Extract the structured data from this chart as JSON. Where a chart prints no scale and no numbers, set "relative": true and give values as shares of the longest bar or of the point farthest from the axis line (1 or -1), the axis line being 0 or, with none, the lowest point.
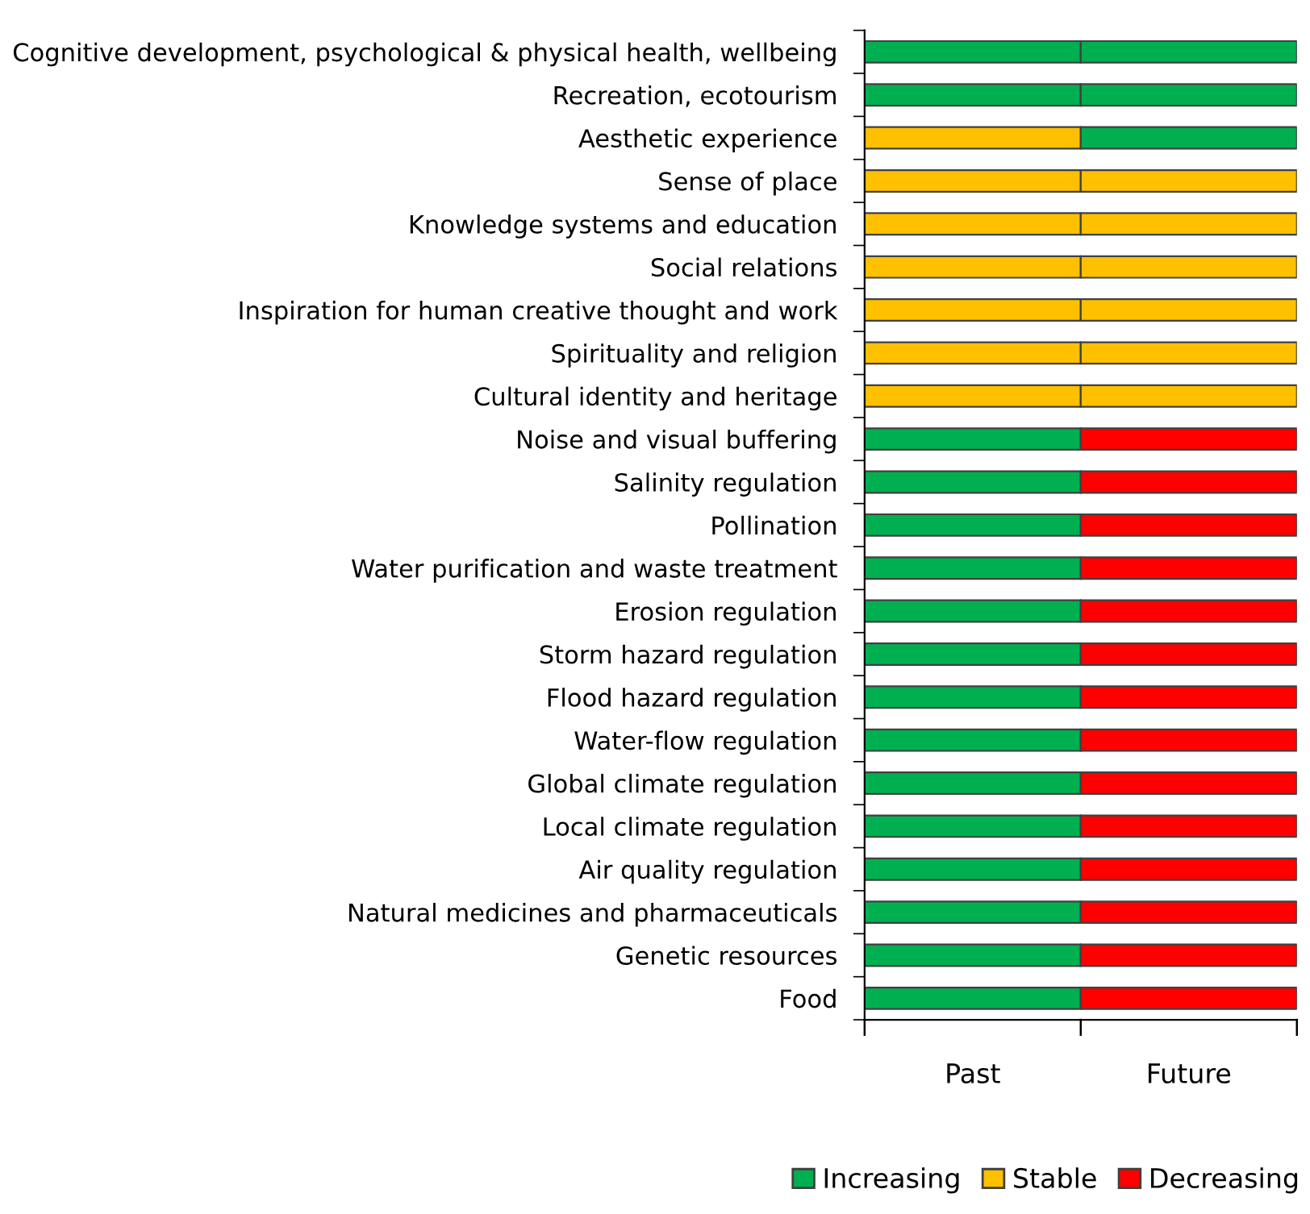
{
  "chart_data": {
    "type": "bar",
    "orientation": "horizontal",
    "stacked": true,
    "relative": true,
    "categories": [
      "Cognitive development, psychological & physical health, wellbeing",
      "Recreation, ecotourism",
      "Aesthetic experience",
      "Sense of place",
      "Knowledge systems and education",
      "Social relations",
      "Inspiration for human creative thought and work",
      "Spirituality and religion",
      "Cultural identity and heritage",
      "Noise and visual buffering",
      "Salinity regulation",
      "Pollination",
      "Water purification and waste treatment",
      "Erosion regulation",
      "Storm hazard regulation",
      "Flood hazard regulation",
      "Water-flow regulation",
      "Global climate regulation",
      "Local climate regulation",
      "Air quality regulation",
      "Natural medicines and pharmaceuticals",
      "Genetic resources",
      "Food"
    ],
    "series": [
      {
        "name": "Past",
        "values": [
          0.5,
          0.5,
          0.5,
          0.5,
          0.5,
          0.5,
          0.5,
          0.5,
          0.5,
          0.5,
          0.5,
          0.5,
          0.5,
          0.5,
          0.5,
          0.5,
          0.5,
          0.5,
          0.5,
          0.5,
          0.5,
          0.5,
          0.5
        ],
        "colors": [
          "#00b050",
          "#00b050",
          "#ffc000",
          "#ffc000",
          "#ffc000",
          "#ffc000",
          "#ffc000",
          "#ffc000",
          "#ffc000",
          "#00b050",
          "#00b050",
          "#00b050",
          "#00b050",
          "#00b050",
          "#00b050",
          "#00b050",
          "#00b050",
          "#00b050",
          "#00b050",
          "#00b050",
          "#00b050",
          "#00b050",
          "#00b050"
        ]
      },
      {
        "name": "Future",
        "values": [
          0.5,
          0.5,
          0.5,
          0.5,
          0.5,
          0.5,
          0.5,
          0.5,
          0.5,
          0.5,
          0.5,
          0.5,
          0.5,
          0.5,
          0.5,
          0.5,
          0.5,
          0.5,
          0.5,
          0.5,
          0.5,
          0.5,
          0.5
        ],
        "colors": [
          "#00b050",
          "#00b050",
          "#00b050",
          "#ffc000",
          "#ffc000",
          "#ffc000",
          "#ffc000",
          "#ffc000",
          "#ffc000",
          "#ff0000",
          "#ff0000",
          "#ff0000",
          "#ff0000",
          "#ff0000",
          "#ff0000",
          "#ff0000",
          "#ff0000",
          "#ff0000",
          "#ff0000",
          "#ff0000",
          "#ff0000",
          "#ff0000",
          "#ff0000"
        ]
      }
    ],
    "annotations": [
      "Increasing",
      "Stable",
      "Decreasing"
    ],
    "grid": false,
    "legend": "bottom"
  }
}
